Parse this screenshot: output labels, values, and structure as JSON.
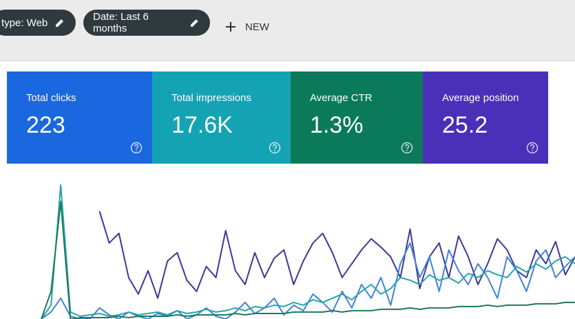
{
  "filters": [
    "type: Web",
    "Date: Last 6 months"
  ],
  "new_button": "NEW",
  "cards": [
    {
      "label": "Total clicks",
      "value": "223",
      "color": "#1a67e0"
    },
    {
      "label": "Total impressions",
      "value": "17.6K",
      "color": "#14a3b3"
    },
    {
      "label": "Average CTR",
      "value": "1.3%",
      "color": "#0b7a5b"
    },
    {
      "label": "Average position",
      "value": "25.2",
      "color": "#4a2fb8"
    }
  ],
  "chart_data": {
    "type": "line",
    "ylim": [
      0,
      100
    ],
    "series": [
      {
        "color": "#3b3796",
        "values": [
          null,
          null,
          null,
          null,
          null,
          null,
          78,
          55,
          62,
          30,
          18,
          35,
          15,
          42,
          48,
          28,
          20,
          38,
          30,
          64,
          35,
          25,
          48,
          30,
          44,
          50,
          25,
          42,
          55,
          62,
          48,
          30,
          40,
          50,
          58,
          52,
          45,
          30,
          65,
          22,
          45,
          55,
          30,
          60,
          45,
          25,
          40,
          58,
          50,
          35,
          30,
          50,
          40,
          56,
          32,
          45
        ]
      },
      {
        "color": "#3f82d8",
        "values": [
          0,
          5,
          15,
          2,
          0,
          0,
          8,
          3,
          0,
          5,
          2,
          0,
          4,
          2,
          6,
          0,
          3,
          8,
          2,
          0,
          5,
          12,
          4,
          8,
          15,
          3,
          10,
          6,
          18,
          12,
          5,
          20,
          8,
          25,
          15,
          30,
          10,
          40,
          55,
          30,
          45,
          20,
          50,
          35,
          25,
          40,
          30,
          15,
          45,
          35,
          20,
          42,
          50,
          30,
          38,
          45
        ]
      },
      {
        "color": "#27a2ac",
        "values": [
          0,
          10,
          97,
          5,
          2,
          3,
          4,
          2,
          3,
          5,
          3,
          4,
          5,
          3,
          6,
          4,
          5,
          7,
          5,
          6,
          8,
          6,
          9,
          8,
          10,
          9,
          12,
          10,
          14,
          12,
          15,
          18,
          14,
          20,
          25,
          18,
          22,
          30,
          28,
          25,
          32,
          28,
          30,
          26,
          33,
          30,
          35,
          32,
          30,
          38,
          34,
          40,
          36,
          42,
          45,
          40
        ]
      },
      {
        "color": "#1e7a58",
        "values": [
          0,
          20,
          85,
          0,
          1,
          1,
          1,
          1,
          2,
          1,
          2,
          2,
          2,
          2,
          3,
          2,
          3,
          3,
          3,
          3,
          4,
          3,
          4,
          4,
          4,
          4,
          5,
          5,
          5,
          5,
          6,
          5,
          6,
          6,
          6,
          7,
          7,
          7,
          8,
          7,
          8,
          8,
          8,
          9,
          9,
          9,
          10,
          9,
          10,
          10,
          10,
          11,
          11,
          11,
          12,
          12
        ]
      }
    ]
  }
}
